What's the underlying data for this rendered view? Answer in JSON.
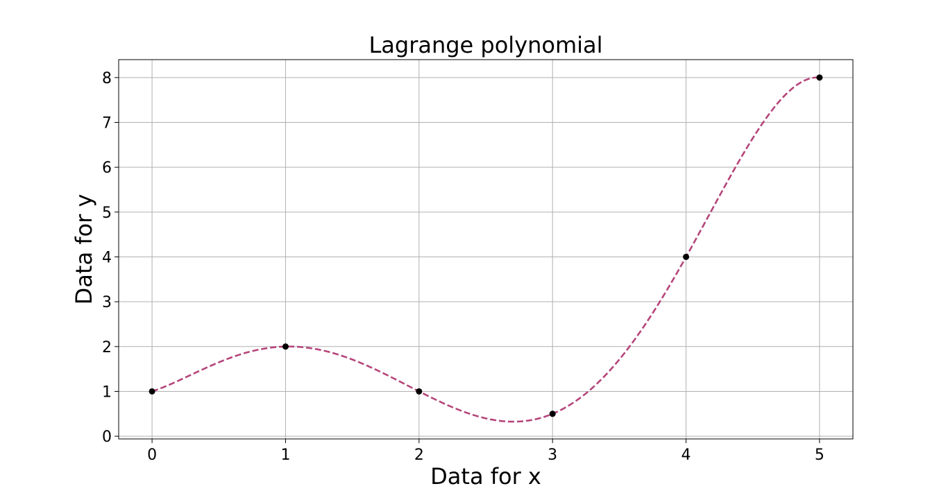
{
  "chart_data": {
    "type": "line",
    "title": "Lagrange polynomial",
    "xlabel": "Data for x",
    "ylabel": "Data for y",
    "xlim": [
      -0.25,
      5.25
    ],
    "ylim": [
      -0.06,
      8.4
    ],
    "x_ticks": [
      0,
      1,
      2,
      3,
      4,
      5
    ],
    "y_ticks": [
      0,
      1,
      2,
      3,
      4,
      5,
      6,
      7,
      8
    ],
    "grid": true,
    "points": {
      "x": [
        0,
        1,
        2,
        3,
        4,
        5
      ],
      "y": [
        1,
        2,
        1,
        0.5,
        4,
        8
      ],
      "color": "#000000"
    },
    "curve": {
      "style": "dashed",
      "color": "#b5457a",
      "method": "Lagrange interpolation through points"
    }
  }
}
